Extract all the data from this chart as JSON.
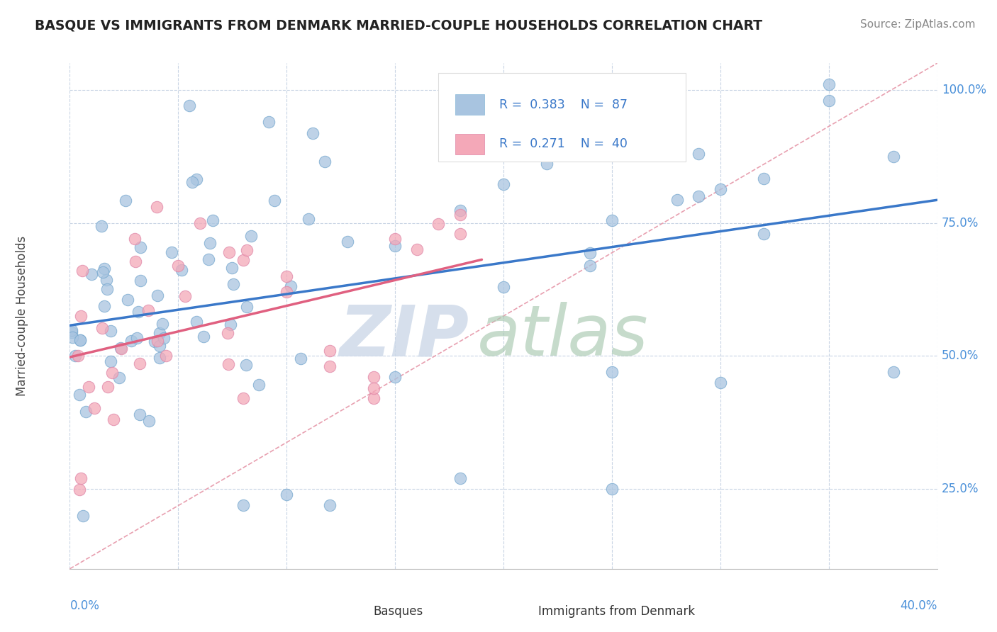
{
  "title": "BASQUE VS IMMIGRANTS FROM DENMARK MARRIED-COUPLE HOUSEHOLDS CORRELATION CHART",
  "source": "Source: ZipAtlas.com",
  "ylabel": "Married-couple Households",
  "ylabel_right_ticks": [
    "100.0%",
    "75.0%",
    "50.0%",
    "25.0%"
  ],
  "ylabel_right_vals": [
    1.0,
    0.75,
    0.5,
    0.25
  ],
  "xlim": [
    0.0,
    0.4
  ],
  "ylim": [
    0.1,
    1.05
  ],
  "legend_r1": "R = 0.383",
  "legend_n1": "N = 87",
  "legend_r2": "R = 0.271",
  "legend_n2": "N = 40",
  "label1": "Basques",
  "label2": "Immigrants from Denmark",
  "color1": "#a8c4e0",
  "color2": "#f4a8b8",
  "trendline1_color": "#3a78c9",
  "trendline2_color": "#e06080",
  "refline_color": "#e8a0b0",
  "watermark_zip": "ZIP",
  "watermark_atlas": "atlas",
  "background_color": "#ffffff"
}
